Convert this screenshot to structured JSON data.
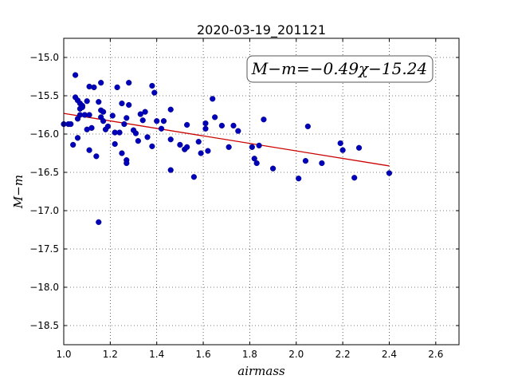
{
  "chart_data": {
    "type": "scatter",
    "title": "2020-03-19_201121",
    "xlabel": "airmass",
    "ylabel": "M−m",
    "xlim": [
      1.0,
      2.7
    ],
    "ylim": [
      -18.75,
      -14.75
    ],
    "xticks": [
      1.0,
      1.2,
      1.4,
      1.6,
      1.8,
      2.0,
      2.2,
      2.4,
      2.6
    ],
    "xtick_labels": [
      "1.0",
      "1.2",
      "1.4",
      "1.6",
      "1.8",
      "2.0",
      "2.2",
      "2.4",
      "2.6"
    ],
    "yticks": [
      -15.0,
      -15.5,
      -16.0,
      -16.5,
      -17.0,
      -17.5,
      -18.0,
      -18.5
    ],
    "ytick_labels": [
      "−15.0",
      "−15.5",
      "−16.0",
      "−16.5",
      "−17.0",
      "−17.5",
      "−18.0",
      "−18.5"
    ],
    "grid": true,
    "annotation": "M−m=−0.49χ−15.24",
    "fit": {
      "slope": -0.49,
      "intercept": -15.24,
      "x_range": [
        1.0,
        2.4
      ],
      "color": "#cc0000"
    },
    "marker_color": "#0000bb",
    "points": [
      [
        1.0,
        -15.87
      ],
      [
        1.02,
        -15.87
      ],
      [
        1.03,
        -15.87
      ],
      [
        1.04,
        -16.14
      ],
      [
        1.05,
        -15.23
      ],
      [
        1.05,
        -15.52
      ],
      [
        1.06,
        -15.56
      ],
      [
        1.06,
        -15.8
      ],
      [
        1.06,
        -16.05
      ],
      [
        1.07,
        -15.6
      ],
      [
        1.07,
        -15.67
      ],
      [
        1.07,
        -15.75
      ],
      [
        1.08,
        -15.63
      ],
      [
        1.08,
        -15.65
      ],
      [
        1.09,
        -15.75
      ],
      [
        1.1,
        -15.57
      ],
      [
        1.1,
        -15.94
      ],
      [
        1.11,
        -15.38
      ],
      [
        1.11,
        -15.75
      ],
      [
        1.11,
        -16.21
      ],
      [
        1.12,
        -15.92
      ],
      [
        1.13,
        -15.39
      ],
      [
        1.14,
        -16.29
      ],
      [
        1.15,
        -15.58
      ],
      [
        1.15,
        -17.15
      ],
      [
        1.16,
        -15.33
      ],
      [
        1.16,
        -15.69
      ],
      [
        1.16,
        -15.78
      ],
      [
        1.17,
        -15.71
      ],
      [
        1.17,
        -15.83
      ],
      [
        1.18,
        -15.94
      ],
      [
        1.19,
        -15.9
      ],
      [
        1.21,
        -15.76
      ],
      [
        1.22,
        -15.98
      ],
      [
        1.22,
        -16.13
      ],
      [
        1.23,
        -15.39
      ],
      [
        1.24,
        -15.98
      ],
      [
        1.25,
        -15.6
      ],
      [
        1.25,
        -16.25
      ],
      [
        1.26,
        -15.87
      ],
      [
        1.27,
        -15.79
      ],
      [
        1.27,
        -16.34
      ],
      [
        1.27,
        -16.38
      ],
      [
        1.28,
        -15.33
      ],
      [
        1.28,
        -15.62
      ],
      [
        1.3,
        -15.95
      ],
      [
        1.31,
        -15.99
      ],
      [
        1.32,
        -16.09
      ],
      [
        1.33,
        -15.74
      ],
      [
        1.34,
        -15.82
      ],
      [
        1.35,
        -15.71
      ],
      [
        1.36,
        -16.04
      ],
      [
        1.38,
        -15.37
      ],
      [
        1.38,
        -16.16
      ],
      [
        1.39,
        -15.46
      ],
      [
        1.4,
        -15.83
      ],
      [
        1.42,
        -15.93
      ],
      [
        1.43,
        -15.83
      ],
      [
        1.46,
        -15.68
      ],
      [
        1.46,
        -16.07
      ],
      [
        1.46,
        -16.47
      ],
      [
        1.5,
        -16.14
      ],
      [
        1.52,
        -16.2
      ],
      [
        1.53,
        -15.88
      ],
      [
        1.53,
        -16.17
      ],
      [
        1.56,
        -16.56
      ],
      [
        1.58,
        -16.1
      ],
      [
        1.59,
        -16.25
      ],
      [
        1.61,
        -15.86
      ],
      [
        1.61,
        -15.93
      ],
      [
        1.62,
        -16.22
      ],
      [
        1.64,
        -15.54
      ],
      [
        1.65,
        -15.78
      ],
      [
        1.68,
        -15.89
      ],
      [
        1.71,
        -16.17
      ],
      [
        1.73,
        -15.89
      ],
      [
        1.75,
        -15.96
      ],
      [
        1.81,
        -16.17
      ],
      [
        1.82,
        -16.32
      ],
      [
        1.83,
        -16.38
      ],
      [
        1.84,
        -16.15
      ],
      [
        1.86,
        -15.81
      ],
      [
        1.9,
        -16.45
      ],
      [
        2.01,
        -16.58
      ],
      [
        2.04,
        -16.35
      ],
      [
        2.05,
        -15.9
      ],
      [
        2.11,
        -16.38
      ],
      [
        2.19,
        -16.12
      ],
      [
        2.2,
        -16.21
      ],
      [
        2.25,
        -16.57
      ],
      [
        2.27,
        -16.18
      ],
      [
        2.4,
        -16.51
      ]
    ]
  }
}
